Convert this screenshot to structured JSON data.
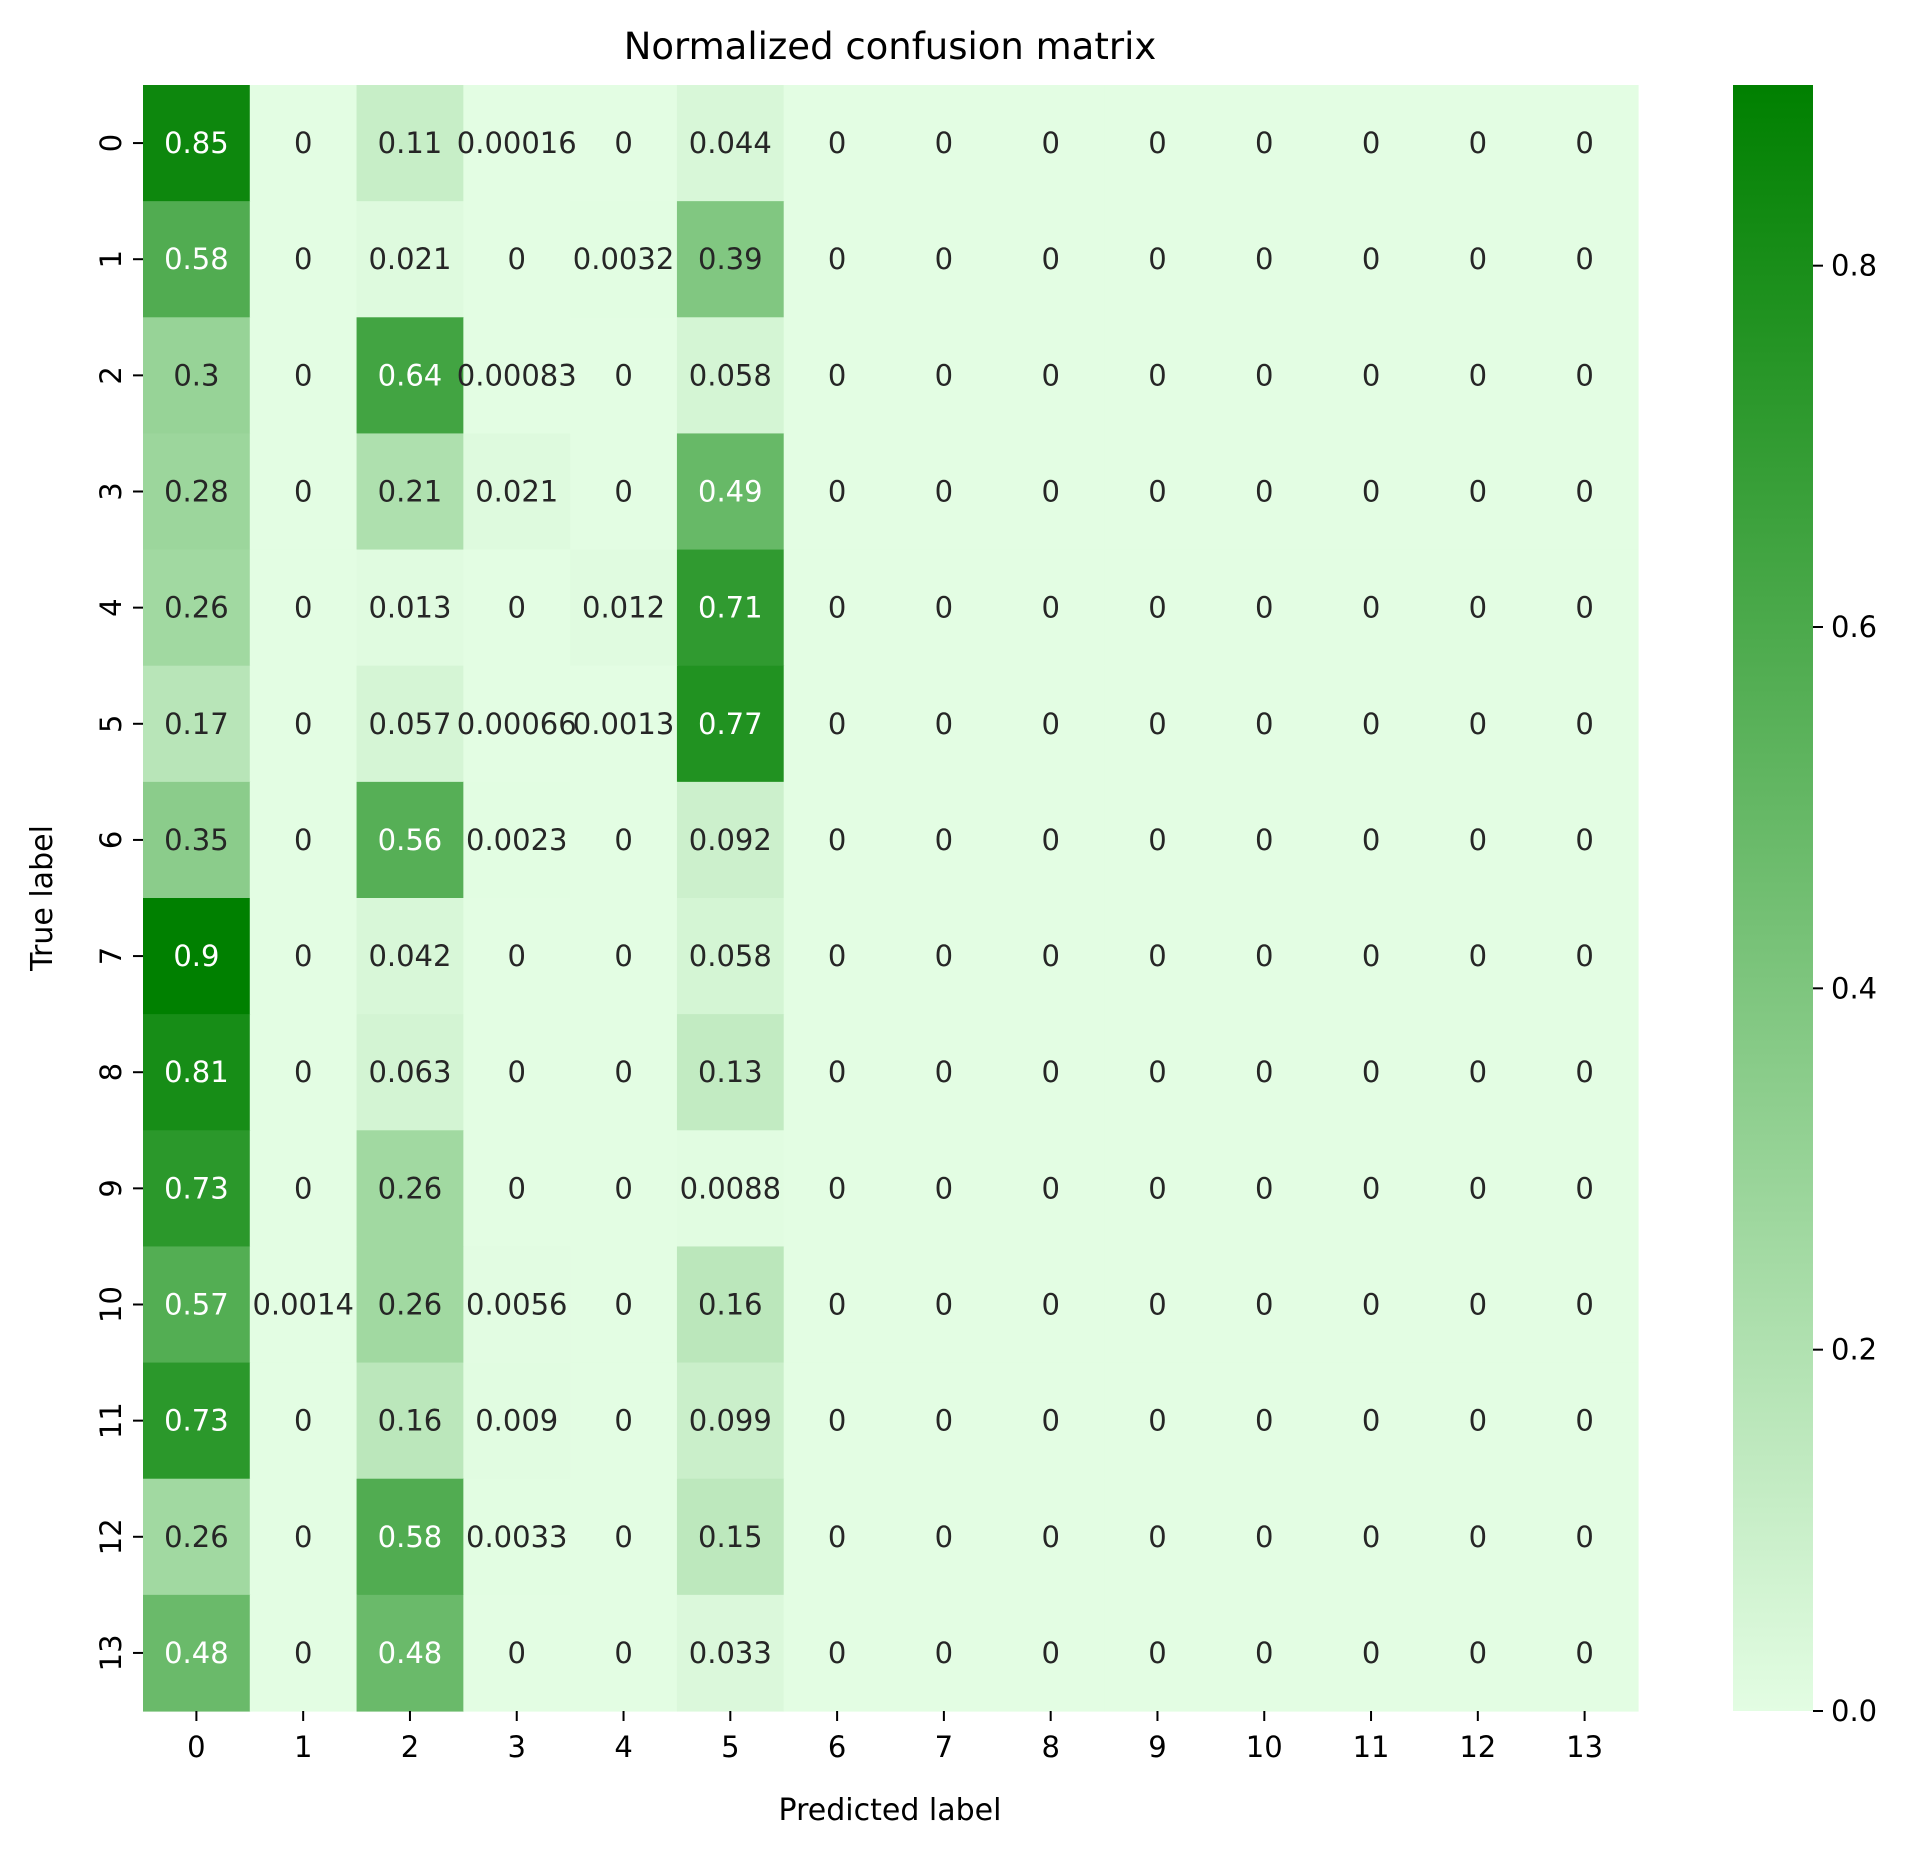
{
  "chart_data": {
    "type": "heatmap",
    "title": "Normalized confusion matrix",
    "xlabel": "Predicted label",
    "ylabel": "True label",
    "x_categories": [
      "0",
      "1",
      "2",
      "3",
      "4",
      "5",
      "6",
      "7",
      "8",
      "9",
      "10",
      "11",
      "12",
      "13"
    ],
    "y_categories": [
      "0",
      "1",
      "2",
      "3",
      "4",
      "5",
      "6",
      "7",
      "8",
      "9",
      "10",
      "11",
      "12",
      "13"
    ],
    "matrix": [
      [
        0.85,
        0.0,
        0.11,
        0.00016,
        0.0,
        0.044,
        0.0,
        0.0,
        0.0,
        0.0,
        0.0,
        0.0,
        0.0,
        0.0
      ],
      [
        0.58,
        0.0,
        0.021,
        0.0,
        0.0032,
        0.39,
        0.0,
        0.0,
        0.0,
        0.0,
        0.0,
        0.0,
        0.0,
        0.0
      ],
      [
        0.3,
        0.0,
        0.64,
        0.00083,
        0.0,
        0.058,
        0.0,
        0.0,
        0.0,
        0.0,
        0.0,
        0.0,
        0.0,
        0.0
      ],
      [
        0.28,
        0.0,
        0.21,
        0.021,
        0.0,
        0.49,
        0.0,
        0.0,
        0.0,
        0.0,
        0.0,
        0.0,
        0.0,
        0.0
      ],
      [
        0.26,
        0.0,
        0.013,
        0.0,
        0.012,
        0.71,
        0.0,
        0.0,
        0.0,
        0.0,
        0.0,
        0.0,
        0.0,
        0.0
      ],
      [
        0.17,
        0.0,
        0.057,
        0.00066,
        0.0013,
        0.77,
        0.0,
        0.0,
        0.0,
        0.0,
        0.0,
        0.0,
        0.0,
        0.0
      ],
      [
        0.35,
        0.0,
        0.56,
        0.0023,
        0.0,
        0.092,
        0.0,
        0.0,
        0.0,
        0.0,
        0.0,
        0.0,
        0.0,
        0.0
      ],
      [
        0.9,
        0.0,
        0.042,
        0.0,
        0.0,
        0.058,
        0.0,
        0.0,
        0.0,
        0.0,
        0.0,
        0.0,
        0.0,
        0.0
      ],
      [
        0.81,
        0.0,
        0.063,
        0.0,
        0.0,
        0.13,
        0.0,
        0.0,
        0.0,
        0.0,
        0.0,
        0.0,
        0.0,
        0.0
      ],
      [
        0.73,
        0.0,
        0.26,
        0.0,
        0.0,
        0.0088,
        0.0,
        0.0,
        0.0,
        0.0,
        0.0,
        0.0,
        0.0,
        0.0
      ],
      [
        0.57,
        0.0014,
        0.26,
        0.0056,
        0.0,
        0.16,
        0.0,
        0.0,
        0.0,
        0.0,
        0.0,
        0.0,
        0.0,
        0.0
      ],
      [
        0.73,
        0.0,
        0.16,
        0.009,
        0.0,
        0.099,
        0.0,
        0.0,
        0.0,
        0.0,
        0.0,
        0.0,
        0.0,
        0.0
      ],
      [
        0.26,
        0.0,
        0.58,
        0.0033,
        0.0,
        0.15,
        0.0,
        0.0,
        0.0,
        0.0,
        0.0,
        0.0,
        0.0,
        0.0
      ],
      [
        0.48,
        0.0,
        0.48,
        0.0,
        0.0,
        0.033,
        0.0,
        0.0,
        0.0,
        0.0,
        0.0,
        0.0,
        0.0,
        0.0
      ]
    ],
    "colorbar": {
      "range": [
        0.0,
        0.9
      ],
      "ticks": [
        0.0,
        0.2,
        0.4,
        0.6,
        0.8
      ],
      "tick_labels": [
        "0.0",
        "0.2",
        "0.4",
        "0.6",
        "0.8"
      ]
    },
    "colors": {
      "low": "#e3fde3",
      "high": "#008000",
      "text_dark": "#262626",
      "text_light": "#ffffff"
    }
  }
}
